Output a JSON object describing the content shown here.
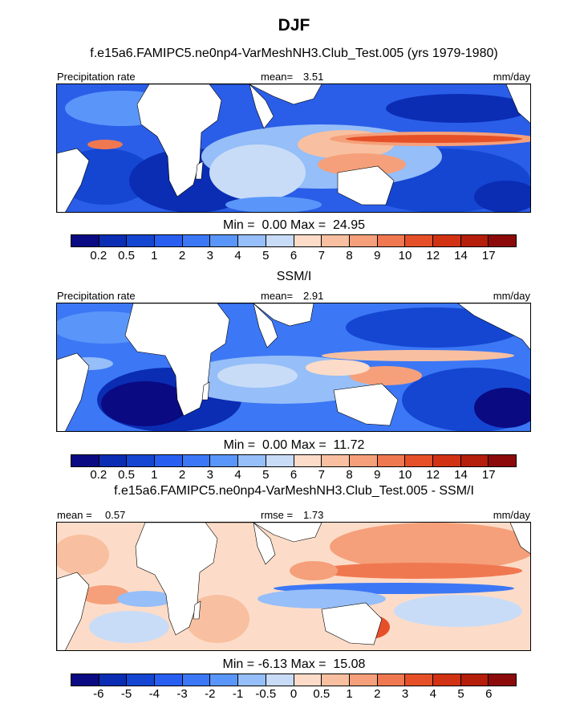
{
  "title": "DJF",
  "panels": [
    {
      "id": "model",
      "subtitle": "f.e15a6.FAMIPC5.ne0np4-VarMeshNH3.Club_Test.005 (yrs 1979-1980)",
      "left_label": "Precipitation rate",
      "stat_label": "mean=",
      "stat_value": "3.51",
      "units": "mm/day",
      "min_label": "Min =",
      "min_value": "0.00",
      "max_label": "Max =",
      "max_value": "24.95",
      "colorbar": "absolute"
    },
    {
      "id": "obs",
      "subtitle": "SSM/I",
      "left_label": "Precipitation rate",
      "stat_label": "mean=",
      "stat_value": "2.91",
      "units": "mm/day",
      "min_label": "Min =",
      "min_value": "0.00",
      "max_label": "Max =",
      "max_value": "11.72",
      "colorbar": "absolute"
    },
    {
      "id": "diff",
      "subtitle": "f.e15a6.FAMIPC5.ne0np4-VarMeshNH3.Club_Test.005 - SSM/I",
      "left_label": "mean =",
      "left_value": "0.57",
      "stat_label": "rmse =",
      "stat_value": "1.73",
      "units": "mm/day",
      "min_label": "Min =",
      "min_value": "-6.13",
      "max_label": "Max =",
      "max_value": "15.08",
      "colorbar": "difference"
    }
  ],
  "chart_data": {
    "type": "heatmap",
    "colorbars": {
      "absolute": {
        "levels": [
          "0.2",
          "0.5",
          "1",
          "2",
          "3",
          "4",
          "5",
          "6",
          "7",
          "8",
          "9",
          "10",
          "12",
          "14",
          "17"
        ],
        "colors": [
          "#0a0a82",
          "#0a2db4",
          "#1446d2",
          "#285ff0",
          "#3c78f5",
          "#5a96fa",
          "#96bef8",
          "#c8dcf8",
          "#fcdcc8",
          "#f8c0a0",
          "#f5a07a",
          "#f07850",
          "#e65028",
          "#d23214",
          "#b41e0a",
          "#8c0a0a"
        ]
      },
      "difference": {
        "levels": [
          "-6",
          "-5",
          "-4",
          "-3",
          "-2",
          "-1",
          "-0.5",
          "0",
          "0.5",
          "1",
          "2",
          "3",
          "4",
          "5",
          "6"
        ],
        "colors": [
          "#0a0a82",
          "#0a2db4",
          "#1446d2",
          "#285ff0",
          "#3c78f5",
          "#5a96fa",
          "#96bef8",
          "#c8dcf8",
          "#fcdcc8",
          "#f8c0a0",
          "#f5a07a",
          "#f07850",
          "#e65028",
          "#d23214",
          "#b41e0a",
          "#8c0a0a"
        ]
      }
    }
  }
}
